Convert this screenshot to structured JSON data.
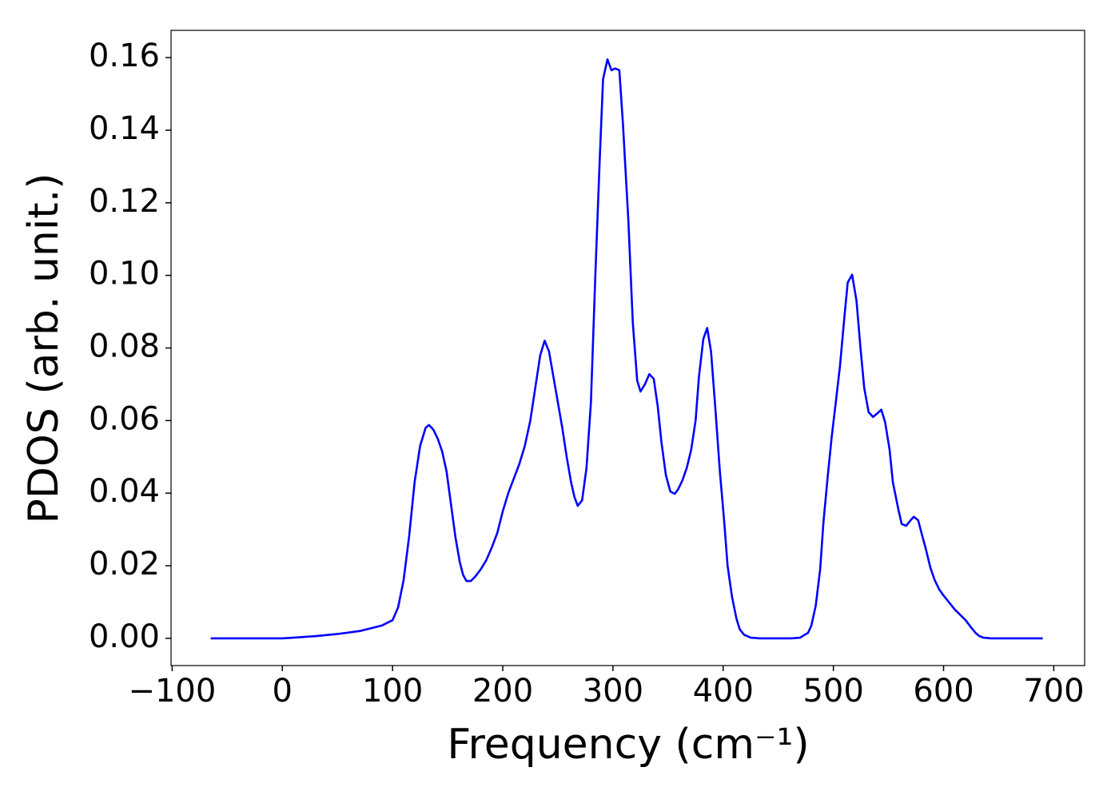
{
  "chart_data": {
    "type": "line",
    "xlabel": "Frequency (cm⁻¹)",
    "ylabel": "PDOS (arb. unit.)",
    "color": "#0000ff",
    "xlim": [
      -101,
      728
    ],
    "ylim": [
      -0.0075,
      0.1675
    ],
    "xticks": [
      {
        "value": -100,
        "label": "−100"
      },
      0,
      100,
      200,
      300,
      400,
      500,
      600,
      700
    ],
    "yticks": [
      {
        "value": 0,
        "label": "0.00"
      },
      {
        "value": 0.02,
        "label": "0.02"
      },
      {
        "value": 0.04,
        "label": "0.04"
      },
      {
        "value": 0.06,
        "label": "0.06"
      },
      {
        "value": 0.08,
        "label": "0.08"
      },
      {
        "value": 0.1,
        "label": "0.10"
      },
      {
        "value": 0.12,
        "label": "0.12"
      },
      {
        "value": 0.14,
        "label": "0.14"
      },
      {
        "value": 0.16,
        "label": "0.16"
      }
    ],
    "x": [
      -65,
      0,
      10,
      30,
      50,
      70,
      90,
      100,
      105,
      110,
      115,
      120,
      125,
      130,
      133,
      137,
      141,
      145,
      149,
      153,
      157,
      161,
      164,
      167,
      171,
      175,
      180,
      185,
      190,
      195,
      200,
      205,
      210,
      215,
      220,
      225,
      230,
      234,
      238,
      242,
      246,
      250,
      254,
      258,
      262,
      265,
      268,
      272,
      276,
      280,
      284,
      288,
      291,
      295,
      298.6,
      302,
      305.8,
      309,
      314,
      318,
      322,
      325,
      329,
      333,
      337,
      340.6,
      344,
      348,
      352,
      356,
      359,
      363,
      367,
      371,
      375,
      378,
      382,
      385.5,
      389,
      393,
      397,
      401,
      404,
      408,
      412,
      415,
      419,
      425,
      433,
      462,
      470,
      473,
      477,
      480,
      484,
      488,
      491,
      495,
      498.5,
      502,
      506,
      510,
      513,
      517,
      521,
      524.6,
      528,
      532,
      536,
      540,
      543.5,
      547,
      551,
      554,
      559,
      562,
      566,
      570,
      573,
      577,
      580,
      584,
      588,
      592,
      596,
      600,
      610,
      620,
      625,
      629,
      632.6,
      636,
      643,
      690
    ],
    "values": [
      0,
      0,
      0.0002,
      0.0006,
      0.0012,
      0.002,
      0.0035,
      0.005,
      0.0085,
      0.016,
      0.028,
      0.043,
      0.053,
      0.058,
      0.0588,
      0.0575,
      0.055,
      0.0515,
      0.046,
      0.037,
      0.028,
      0.021,
      0.0175,
      0.0158,
      0.0158,
      0.017,
      0.019,
      0.0215,
      0.025,
      0.029,
      0.035,
      0.04,
      0.044,
      0.048,
      0.053,
      0.06,
      0.07,
      0.078,
      0.082,
      0.079,
      0.072,
      0.065,
      0.058,
      0.05,
      0.043,
      0.039,
      0.0365,
      0.038,
      0.047,
      0.065,
      0.1,
      0.132,
      0.154,
      0.1595,
      0.1565,
      0.157,
      0.1565,
      0.142,
      0.115,
      0.087,
      0.071,
      0.068,
      0.07,
      0.0728,
      0.0715,
      0.064,
      0.054,
      0.045,
      0.0405,
      0.0398,
      0.041,
      0.0435,
      0.047,
      0.052,
      0.06,
      0.072,
      0.0825,
      0.0855,
      0.079,
      0.063,
      0.046,
      0.032,
      0.02,
      0.0115,
      0.0055,
      0.0025,
      0.001,
      0.0002,
      0,
      0,
      0.0002,
      0.0008,
      0.0015,
      0.0035,
      0.009,
      0.019,
      0.032,
      0.045,
      0.0555,
      0.0645,
      0.075,
      0.0885,
      0.098,
      0.1002,
      0.093,
      0.08,
      0.069,
      0.0623,
      0.061,
      0.062,
      0.063,
      0.0595,
      0.052,
      0.043,
      0.0355,
      0.0315,
      0.031,
      0.0325,
      0.0335,
      0.0325,
      0.029,
      0.0245,
      0.0195,
      0.016,
      0.0135,
      0.0118,
      0.008,
      0.005,
      0.003,
      0.0015,
      0.0006,
      0.0002,
      0,
      0
    ]
  }
}
